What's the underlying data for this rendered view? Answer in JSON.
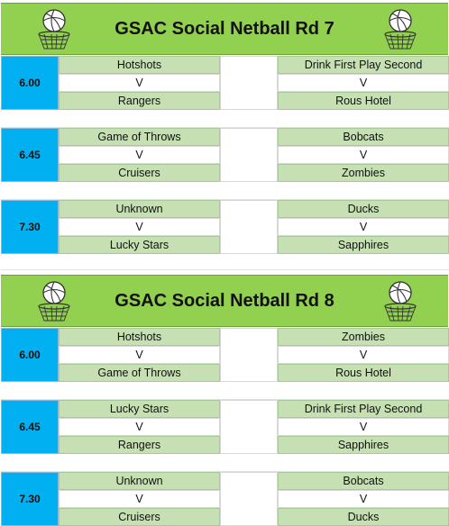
{
  "rounds": [
    {
      "title": "GSAC Social Netball Rd 7",
      "slots": [
        {
          "time": "6.00",
          "game1": {
            "home": "Hotshots",
            "vs": "V",
            "away": "Rangers"
          },
          "game2": {
            "home": "Drink First Play Second",
            "vs": "V",
            "away": "Rous Hotel"
          }
        },
        {
          "time": "6.45",
          "game1": {
            "home": "Game of Throws",
            "vs": "V",
            "away": "Cruisers"
          },
          "game2": {
            "home": "Bobcats",
            "vs": "V",
            "away": "Zombies"
          }
        },
        {
          "time": "7.30",
          "game1": {
            "home": "Unknown",
            "vs": "V",
            "away": "Lucky Stars"
          },
          "game2": {
            "home": "Ducks",
            "vs": "V",
            "away": "Sapphires"
          }
        }
      ]
    },
    {
      "title": "GSAC Social Netball Rd 8",
      "slots": [
        {
          "time": "6.00",
          "game1": {
            "home": "Hotshots",
            "vs": "V",
            "away": "Game of Throws"
          },
          "game2": {
            "home": "Zombies",
            "vs": "V",
            "away": "Rous Hotel"
          }
        },
        {
          "time": "6.45",
          "game1": {
            "home": "Lucky Stars",
            "vs": "V",
            "away": "Rangers"
          },
          "game2": {
            "home": "Drink First Play Second",
            "vs": "V",
            "away": "Sapphires"
          }
        },
        {
          "time": "7.30",
          "game1": {
            "home": "Unknown",
            "vs": "V",
            "away": "Cruisers"
          },
          "game2": {
            "home": "Bobcats",
            "vs": "V",
            "away": "Ducks"
          }
        }
      ]
    }
  ],
  "icons": {
    "left": "netball-hoop-icon",
    "right": "netball-hoop-icon"
  },
  "colors": {
    "header": "#92d050",
    "time": "#00b0f0",
    "team_cell": "#c6e0b4"
  }
}
